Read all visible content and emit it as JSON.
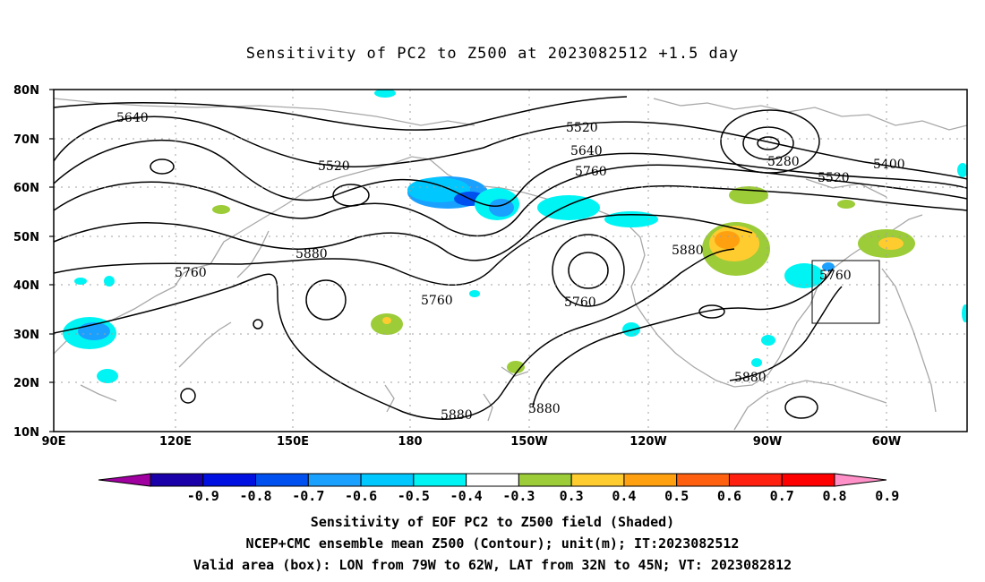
{
  "title": "Sensitivity of PC2 to Z500 at 2023082512 +1.5 day",
  "lat_labels": [
    "80N",
    "70N",
    "60N",
    "50N",
    "40N",
    "30N",
    "20N",
    "10N"
  ],
  "lon_labels": [
    "90E",
    "120E",
    "150E",
    "180",
    "150W",
    "120W",
    "90W",
    "60W"
  ],
  "contour_labels": {
    "c1": "5640",
    "c2": "5520",
    "c3": "5520",
    "c4": "5640",
    "c5": "5760",
    "c6": "5280",
    "c7": "5400",
    "c8": "5520",
    "c9": "5880",
    "c10": "5760",
    "c11": "5760",
    "c12": "5760",
    "c13": "5880",
    "c14": "5760",
    "c15": "5880",
    "c16": "5880",
    "c17": "5880"
  },
  "colorbar": {
    "labels": [
      "-0.9",
      "-0.8",
      "-0.7",
      "-0.6",
      "-0.5",
      "-0.4",
      "-0.3",
      "0.3",
      "0.4",
      "0.5",
      "0.6",
      "0.7",
      "0.8",
      "0.9"
    ],
    "colors": [
      "#a000a0",
      "#1a00a8",
      "#0010e0",
      "#0050f0",
      "#1aa0ff",
      "#00c8ff",
      "#00f4f4",
      "#ffffff",
      "#9ccc38",
      "#ffcc30",
      "#ffa010",
      "#ff6010",
      "#ff2010",
      "#ff0000",
      "#ff90c8"
    ]
  },
  "captions": {
    "line1": "Sensitivity of EOF PC2 to Z500 field (Shaded)",
    "line2": "NCEP+CMC ensemble mean Z500 (Contour); unit(m); IT:2023082512",
    "line3": "Valid area (box): LON from 79W to 62W, LAT from 32N to 45N; VT: 2023082812"
  }
}
